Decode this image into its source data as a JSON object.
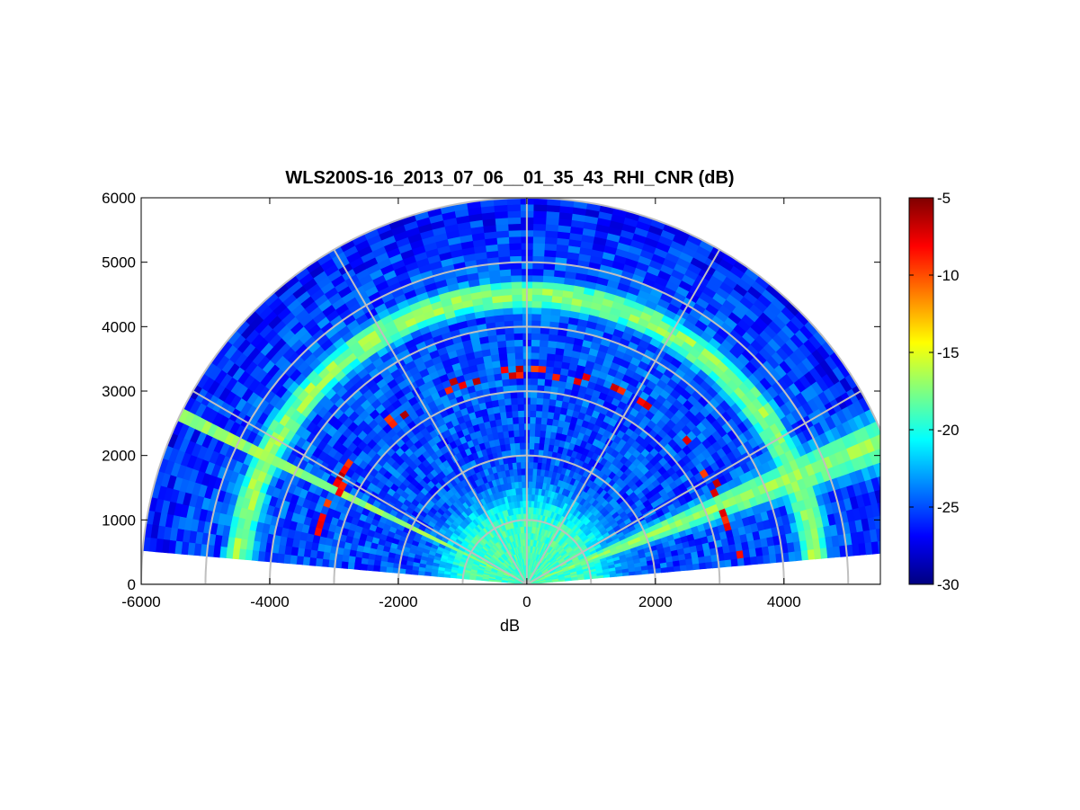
{
  "chart_data": {
    "type": "heatmap",
    "subtype": "polar-RHI-sector",
    "title": "WLS200S-16_2013_07_06__01_35_43_RHI_CNR (dB)",
    "xlabel": "dB",
    "ylabel": "",
    "xlim": [
      -6000,
      5500
    ],
    "ylim": [
      0,
      6000
    ],
    "x_ticks": [
      "-6000",
      "-4000",
      "-2000",
      "0",
      "2000",
      "4000"
    ],
    "y_ticks": [
      "0",
      "1000",
      "2000",
      "3000",
      "4000",
      "5000",
      "6000"
    ],
    "grid": "polar",
    "range_rings": [
      1000,
      2000,
      3000,
      4000,
      5000,
      6000
    ],
    "spokes_deg": [
      0,
      30,
      60,
      90,
      120,
      150,
      180
    ],
    "elevation_span_deg": [
      5,
      175
    ],
    "max_range": 6000,
    "colorbar": {
      "colormap": "jet",
      "min": -30,
      "max": -5,
      "ticks": [
        "-5",
        "-10",
        "-15",
        "-20",
        "-25",
        "-30"
      ],
      "position": "right"
    },
    "features": [
      {
        "name": "aerosol_layer_top",
        "range_m": 4500,
        "cnr_db": -16
      },
      {
        "name": "near_range_return",
        "range_m": 1000,
        "cnr_db": -19
      },
      {
        "name": "strong_returns_band",
        "range_m": 3300,
        "cnr_db": -6
      },
      {
        "name": "low_elevation_beam_right",
        "elevation_deg": 22,
        "cnr_db": -17
      },
      {
        "name": "low_elevation_beam_left",
        "elevation_deg": 154,
        "cnr_db": -17
      },
      {
        "name": "background",
        "cnr_db": -25
      }
    ]
  }
}
